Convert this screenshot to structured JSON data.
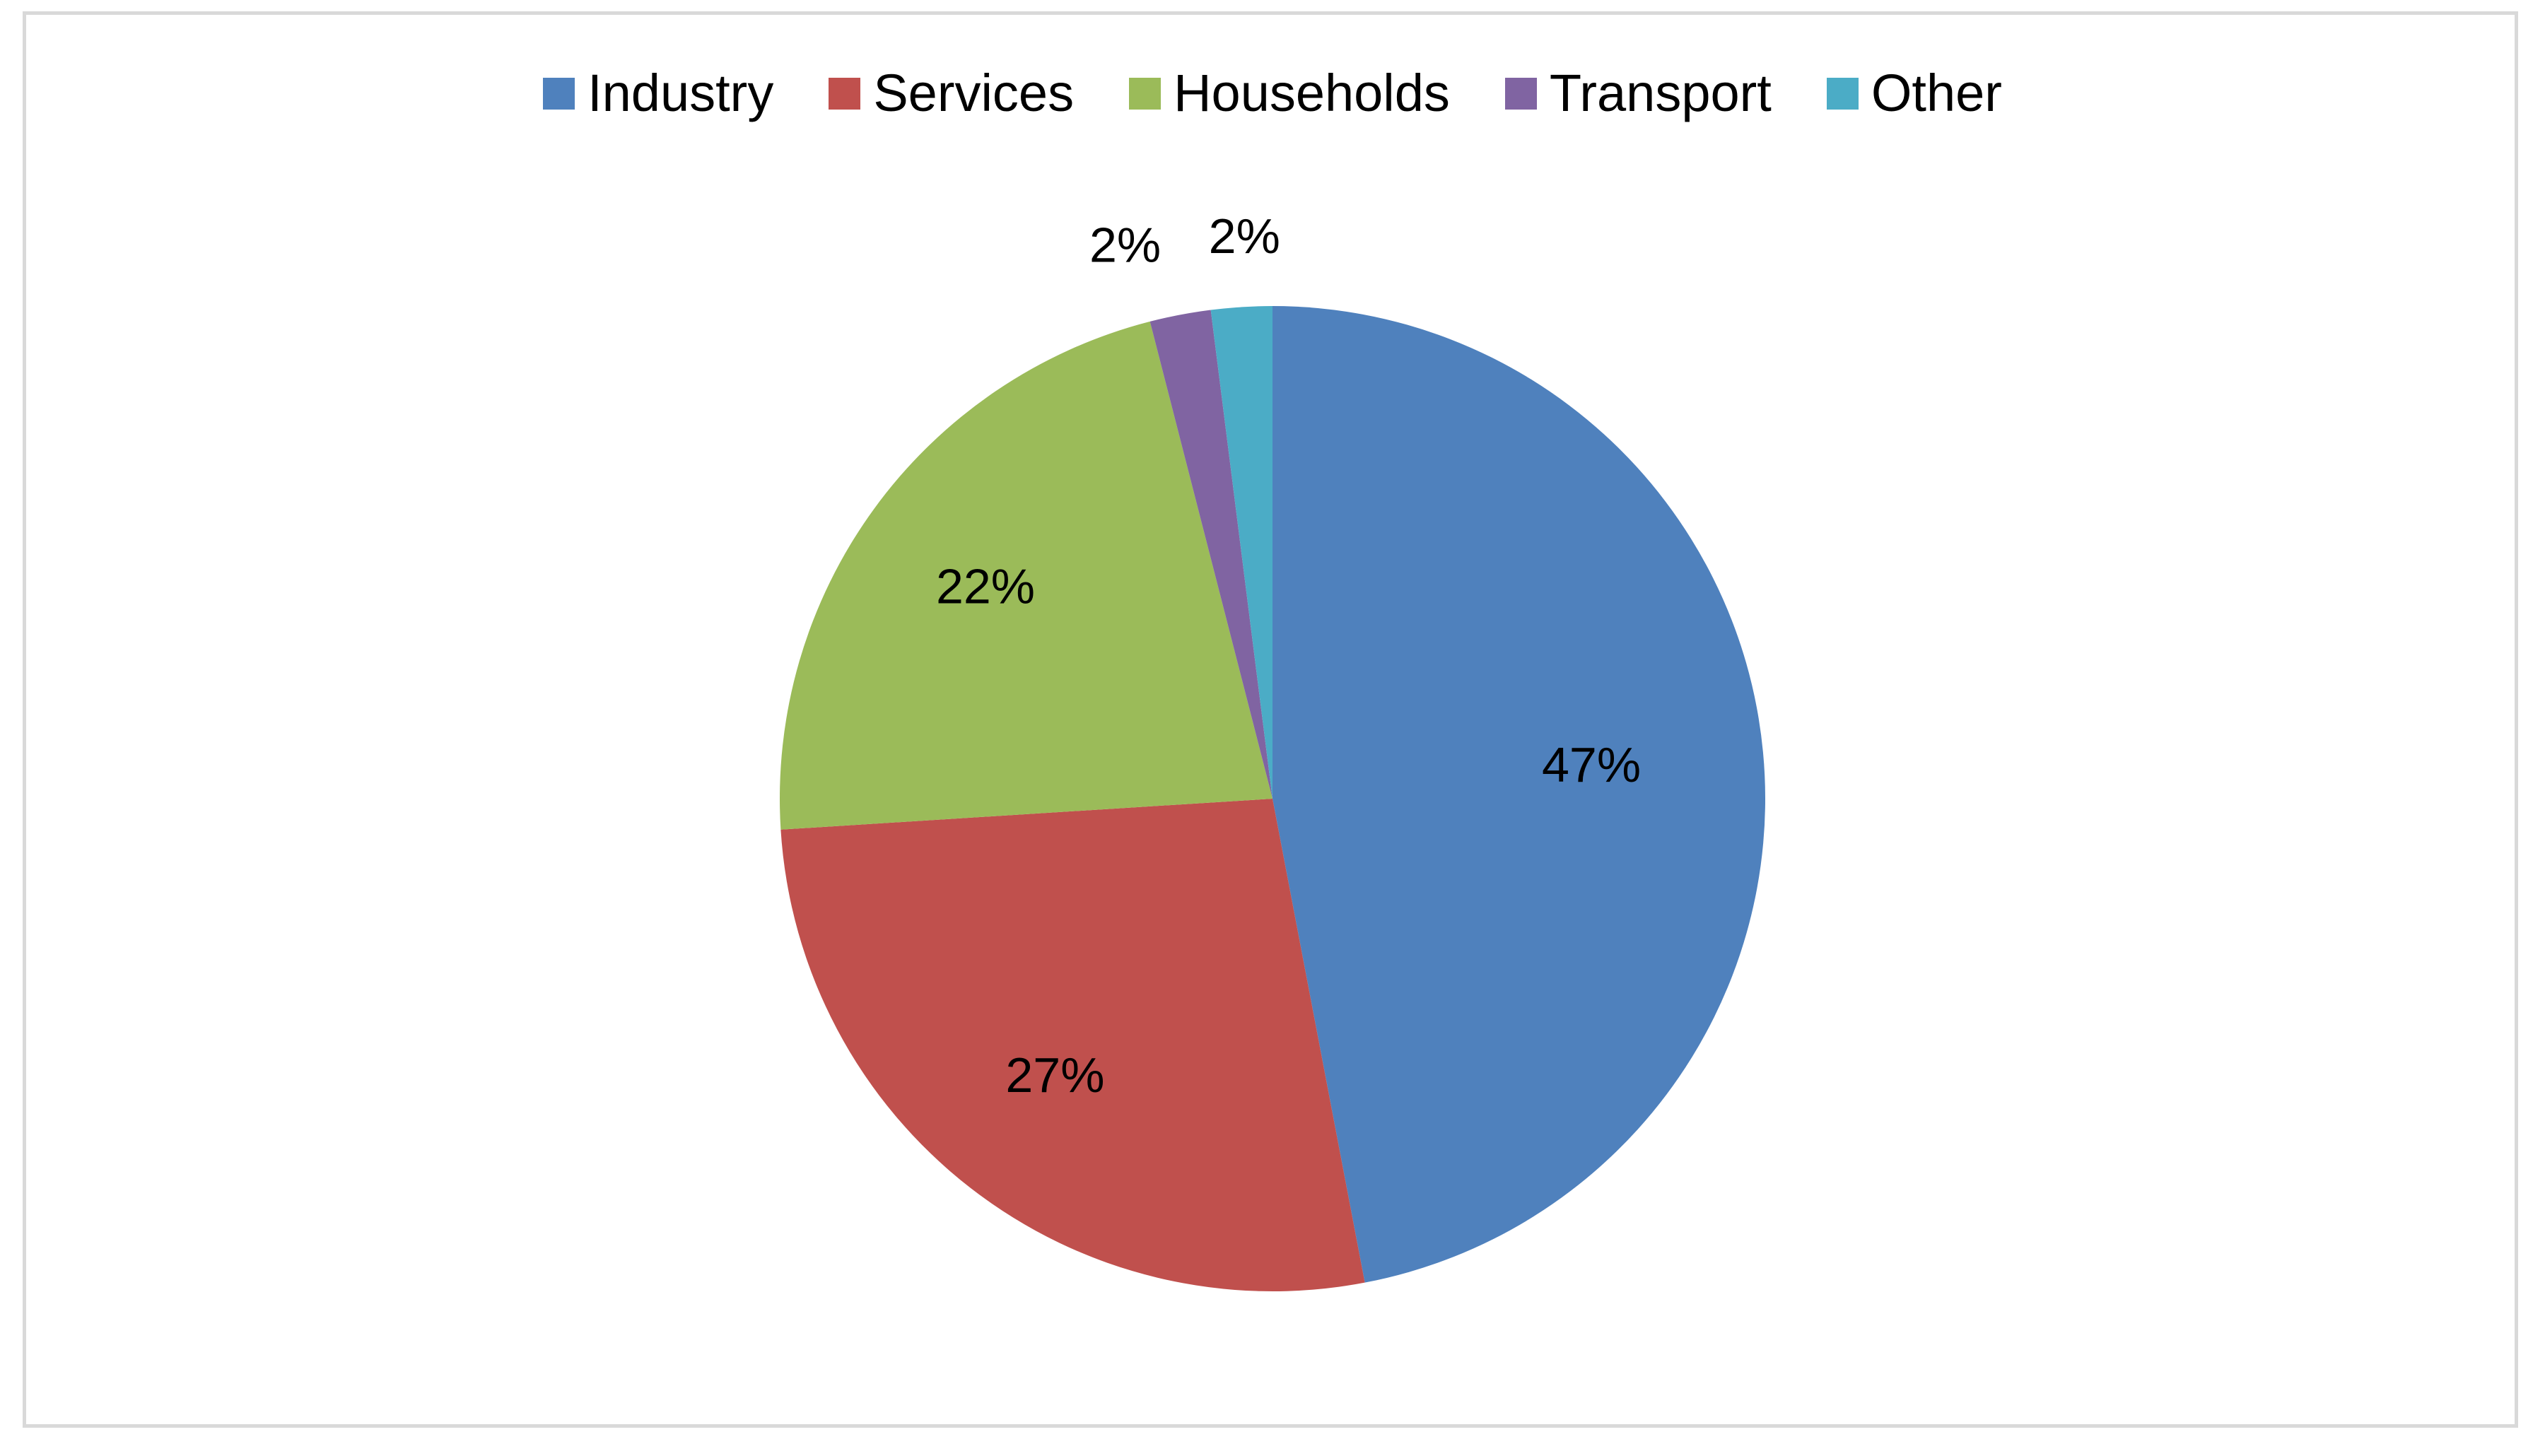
{
  "chart_data": {
    "type": "pie",
    "title": "",
    "legend_position": "top",
    "slices": [
      {
        "label": "Industry",
        "value": 47,
        "display": "47%",
        "color": "#4F81BD"
      },
      {
        "label": "Services",
        "value": 27,
        "display": "27%",
        "color": "#C0504D"
      },
      {
        "label": "Households",
        "value": 22,
        "display": "22%",
        "color": "#9BBB59"
      },
      {
        "label": "Transport",
        "value": 2,
        "display": "2%",
        "color": "#8064A2"
      },
      {
        "label": "Other",
        "value": 2,
        "display": "2%",
        "color": "#4BACC6"
      }
    ]
  }
}
